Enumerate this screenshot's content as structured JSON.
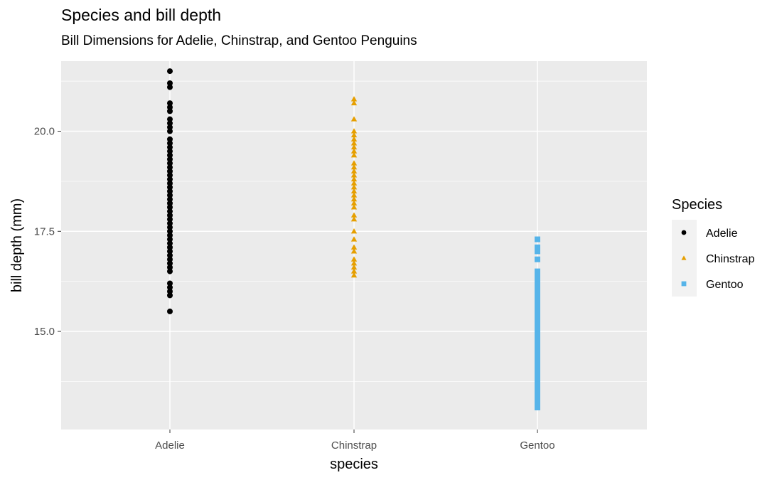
{
  "chart_data": {
    "type": "scatter",
    "title": "Species and bill depth",
    "subtitle": "Bill Dimensions for Adelie, Chinstrap, and Gentoo Penguins",
    "xlabel": "species",
    "ylabel": "bill depth (mm)",
    "categories": [
      "Adelie",
      "Chinstrap",
      "Gentoo"
    ],
    "ylim": [
      12.55,
      21.75
    ],
    "yticks": [
      15.0,
      17.5,
      20.0
    ],
    "ytick_labels": [
      "15.0",
      "17.5",
      "20.0"
    ],
    "grid": true,
    "legend": {
      "title": "Species",
      "position": "right"
    },
    "series": [
      {
        "name": "Adelie",
        "category": "Adelie",
        "shape": "circle",
        "color": "#000000",
        "values": [
          15.5,
          15.9,
          16.0,
          16.1,
          16.2,
          16.5,
          16.6,
          16.7,
          16.8,
          16.9,
          17.0,
          17.1,
          17.2,
          17.3,
          17.4,
          17.5,
          17.6,
          17.7,
          17.8,
          17.9,
          18.0,
          18.1,
          18.2,
          18.3,
          18.4,
          18.5,
          18.6,
          18.7,
          18.8,
          18.9,
          19.0,
          19.1,
          19.2,
          19.3,
          19.4,
          19.5,
          19.6,
          19.7,
          19.8,
          20.0,
          20.1,
          20.2,
          20.3,
          20.5,
          20.6,
          20.7,
          21.1,
          21.2,
          21.5
        ]
      },
      {
        "name": "Chinstrap",
        "category": "Chinstrap",
        "shape": "triangle",
        "color": "#E69F00",
        "values": [
          16.4,
          16.5,
          16.6,
          16.7,
          16.8,
          17.0,
          17.1,
          17.3,
          17.5,
          17.8,
          17.9,
          18.1,
          18.2,
          18.3,
          18.4,
          18.5,
          18.6,
          18.7,
          18.8,
          18.9,
          19.0,
          19.1,
          19.2,
          19.4,
          19.5,
          19.6,
          19.7,
          19.8,
          19.9,
          20.0,
          20.3,
          20.7,
          20.8
        ]
      },
      {
        "name": "Gentoo",
        "category": "Gentoo",
        "shape": "square",
        "color": "#56B4E9",
        "values": [
          13.1,
          13.2,
          13.3,
          13.4,
          13.5,
          13.6,
          13.7,
          13.8,
          13.9,
          14.0,
          14.1,
          14.2,
          14.3,
          14.4,
          14.5,
          14.6,
          14.7,
          14.8,
          14.9,
          15.0,
          15.1,
          15.2,
          15.3,
          15.4,
          15.5,
          15.6,
          15.7,
          15.8,
          15.9,
          16.0,
          16.1,
          16.2,
          16.3,
          16.4,
          16.5,
          16.8,
          17.0,
          17.1,
          17.3
        ]
      }
    ]
  }
}
